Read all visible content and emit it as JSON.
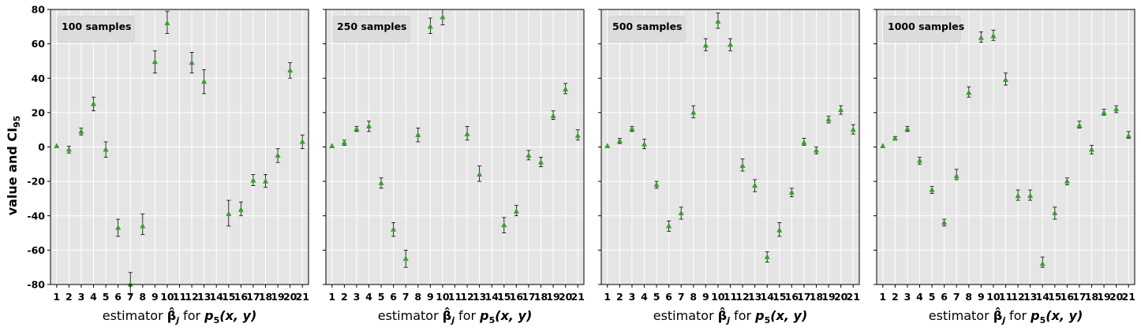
{
  "y_axis_label": "value and CI",
  "y_axis_label_subscript": "95",
  "x_axis_label_prefix": "estimator",
  "x_axis_label_mid": "for",
  "x_axis_label_beta": "β̂",
  "x_axis_label_beta_sub": "j",
  "x_axis_label_p": "p",
  "x_axis_label_p_sub": "5",
  "x_axis_label_args": "(x, y)",
  "colors": {
    "panel_bg": "#e5e5e5",
    "grid": "#ffffff",
    "marker": "#3aa030",
    "errorbar": "#000000",
    "legend_bg": "#dcdcdc"
  },
  "chart_data": [
    {
      "type": "scatter",
      "title": "100 samples",
      "x": [
        1,
        2,
        3,
        4,
        5,
        6,
        7,
        8,
        9,
        10,
        11,
        12,
        13,
        14,
        15,
        16,
        17,
        18,
        19,
        20,
        21
      ],
      "y": [
        0.5,
        -1.5,
        9,
        25,
        -1.5,
        -47,
        -80,
        -46,
        49.5,
        72,
        null,
        49,
        38,
        null,
        -39,
        -36.5,
        -19.5,
        -20,
        -5,
        44.5,
        3
      ],
      "ci_lower": [
        0.5,
        -3.5,
        7,
        21,
        -6,
        -52,
        -86,
        -51,
        43,
        66,
        null,
        43,
        31,
        null,
        -46,
        -40,
        -22.5,
        -23.5,
        -9,
        40,
        -1
      ],
      "ci_upper": [
        0.5,
        0.5,
        11,
        29,
        3,
        -42,
        -73,
        -39,
        56,
        79,
        null,
        55,
        45,
        null,
        -31,
        -32,
        -16,
        -16,
        -1,
        49,
        7
      ],
      "ylim": [
        -80,
        80
      ],
      "xticks": [
        1,
        2,
        3,
        4,
        5,
        6,
        7,
        8,
        9,
        10,
        11,
        12,
        13,
        14,
        15,
        16,
        17,
        18,
        19,
        20,
        21
      ],
      "yticks": [
        -80,
        -60,
        -40,
        -20,
        0,
        20,
        40,
        60,
        80
      ],
      "grid": true,
      "legend_position": "top-left"
    },
    {
      "type": "scatter",
      "title": "250 samples",
      "x": [
        1,
        2,
        3,
        4,
        5,
        6,
        7,
        8,
        9,
        10,
        11,
        12,
        13,
        14,
        15,
        16,
        17,
        18,
        19,
        20,
        21
      ],
      "y": [
        0.5,
        2.5,
        10.5,
        12,
        -21,
        -48,
        -65,
        7,
        70,
        75.5,
        null,
        7.5,
        -16,
        null,
        -45.5,
        -37.5,
        -5,
        -9,
        18,
        33.5,
        6.5
      ],
      "ci_lower": [
        0.5,
        1,
        9,
        9,
        -24,
        -52,
        -70,
        3,
        66,
        71,
        null,
        4,
        -20,
        null,
        -50,
        -40,
        -7.5,
        -11.5,
        16,
        31,
        4
      ],
      "ci_upper": [
        0.5,
        4,
        12,
        15,
        -18,
        -44,
        -60,
        11,
        75,
        80,
        null,
        12,
        -11,
        null,
        -41,
        -34,
        -2,
        -6,
        21,
        37,
        10
      ],
      "ylim": [
        -80,
        80
      ],
      "xticks": [
        1,
        2,
        3,
        4,
        5,
        6,
        7,
        8,
        9,
        10,
        11,
        12,
        13,
        14,
        15,
        16,
        17,
        18,
        19,
        20,
        21
      ],
      "yticks": [
        -80,
        -60,
        -40,
        -20,
        0,
        20,
        40,
        60,
        80
      ],
      "grid": true,
      "legend_position": "top-left"
    },
    {
      "type": "scatter",
      "title": "500 samples",
      "x": [
        1,
        2,
        3,
        4,
        5,
        6,
        7,
        8,
        9,
        10,
        11,
        12,
        13,
        14,
        15,
        16,
        17,
        18,
        19,
        20,
        21
      ],
      "y": [
        0.5,
        3.5,
        10.5,
        1.5,
        -22,
        -46,
        -38.5,
        20,
        59,
        73,
        59.5,
        -11,
        -22.5,
        -64,
        -48.5,
        -26.5,
        2.5,
        -2,
        16,
        21.5,
        10
      ],
      "ci_lower": [
        0.5,
        2,
        9,
        -1,
        -24,
        -49,
        -42,
        17,
        56,
        69,
        56,
        -14,
        -26,
        -67,
        -52,
        -29,
        1,
        -4,
        14,
        19,
        7.5
      ],
      "ci_upper": [
        0.5,
        5,
        12,
        4.5,
        -20,
        -43,
        -35,
        24,
        63,
        78,
        63,
        -7,
        -19,
        -61,
        -44,
        -24,
        5,
        0,
        18,
        24,
        13
      ],
      "ylim": [
        -80,
        80
      ],
      "xticks": [
        1,
        2,
        3,
        4,
        5,
        6,
        7,
        8,
        9,
        10,
        11,
        12,
        13,
        14,
        15,
        16,
        17,
        18,
        19,
        20,
        21
      ],
      "yticks": [
        -80,
        -60,
        -40,
        -20,
        0,
        20,
        40,
        60,
        80
      ],
      "grid": true,
      "legend_position": "top-left"
    },
    {
      "type": "scatter",
      "title": "1000 samples",
      "x": [
        1,
        2,
        3,
        4,
        5,
        6,
        7,
        8,
        9,
        10,
        11,
        12,
        13,
        14,
        15,
        16,
        17,
        18,
        19,
        20,
        21
      ],
      "y": [
        0.5,
        5,
        10.5,
        -8,
        -25,
        -44,
        -17,
        31.5,
        63.5,
        64.5,
        39,
        -28.5,
        -28.5,
        -68,
        -38.5,
        -20,
        12.5,
        -1.5,
        20,
        22,
        6.5
      ],
      "ci_lower": [
        0.5,
        4,
        9,
        -10,
        -27,
        -46,
        -19,
        29,
        61,
        62,
        36,
        -31,
        -31,
        -70,
        -42,
        -22,
        11,
        -4,
        18.5,
        20,
        5
      ],
      "ci_upper": [
        0.5,
        6,
        12,
        -6,
        -23,
        -42,
        -13,
        35,
        67,
        68,
        43,
        -25,
        -25,
        -64,
        -35,
        -18,
        15,
        1,
        22,
        24,
        9
      ],
      "ylim": [
        -80,
        80
      ],
      "xticks": [
        1,
        2,
        3,
        4,
        5,
        6,
        7,
        8,
        9,
        10,
        11,
        12,
        13,
        14,
        15,
        16,
        17,
        18,
        19,
        20,
        21
      ],
      "yticks": [
        -80,
        -60,
        -40,
        -20,
        0,
        20,
        40,
        60,
        80
      ],
      "grid": true,
      "legend_position": "top-left"
    }
  ]
}
